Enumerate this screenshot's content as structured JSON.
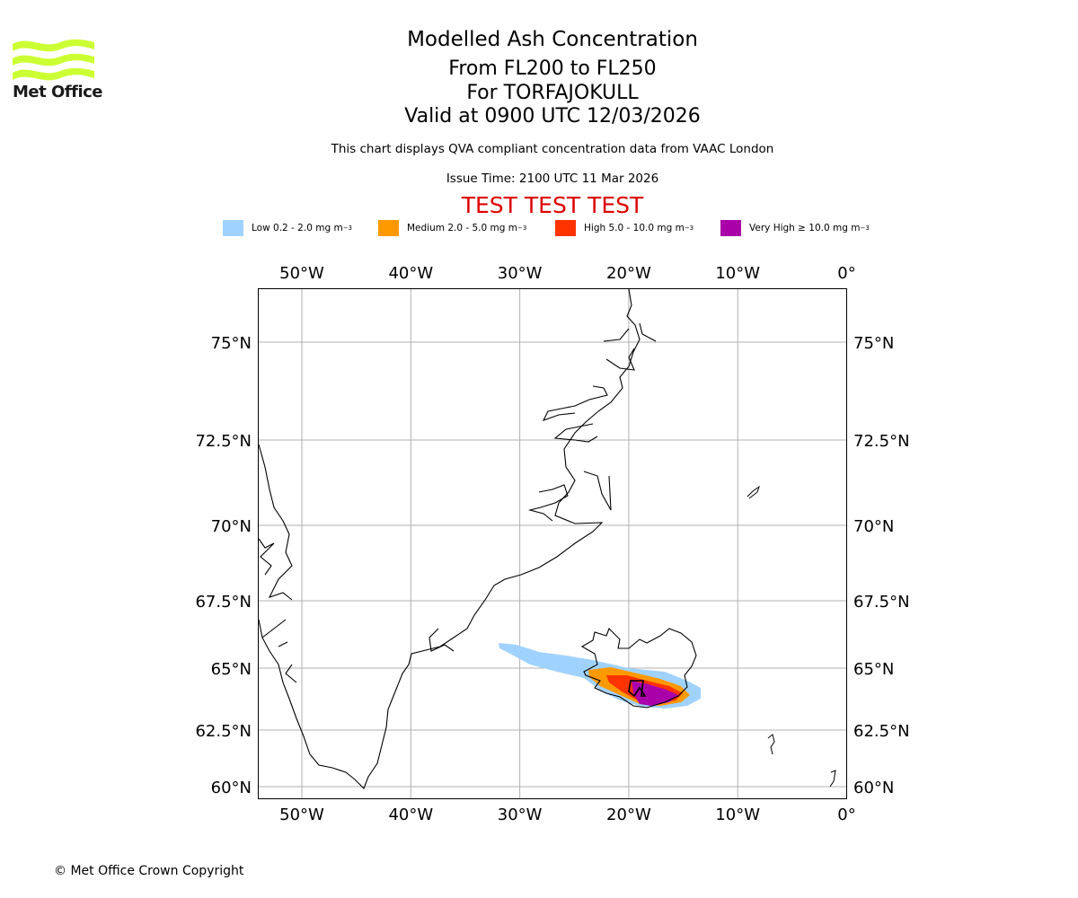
{
  "logo": {
    "text": "Met Office",
    "color": "#ccff33"
  },
  "header": {
    "title": "Modelled Ash Concentration",
    "levels": "From FL200 to FL250",
    "volcano": "For TORFAJOKULL",
    "valid": "Valid at 0900 UTC 12/03/2026",
    "description": "This chart displays QVA compliant concentration data from VAAC London",
    "issue_time": "Issue Time: 2100 UTC 11 Mar 2026",
    "test_banner": "TEST TEST TEST"
  },
  "legend": [
    {
      "label": "Low 0.2 - 2.0 mg m",
      "sup": "−3",
      "color": "#a0d2ff"
    },
    {
      "label": "Medium 2.0 - 5.0 mg m",
      "sup": "−3",
      "color": "#ff9900"
    },
    {
      "label": "High 5.0 - 10.0 mg m",
      "sup": "−3",
      "color": "#ff3300"
    },
    {
      "label": "Very High ≥ 10.0 mg m",
      "sup": "−3",
      "color": "#aa00aa"
    }
  ],
  "map": {
    "lon_range": [
      -54,
      0
    ],
    "lat_range": [
      59.5,
      77
    ],
    "lon_ticks": [
      {
        "value": -50,
        "label": "50°W"
      },
      {
        "value": -40,
        "label": "40°W"
      },
      {
        "value": -30,
        "label": "30°W"
      },
      {
        "value": -20,
        "label": "20°W"
      },
      {
        "value": -10,
        "label": "10°W"
      },
      {
        "value": 0,
        "label": "0°"
      }
    ],
    "lat_ticks": [
      {
        "value": 75,
        "label": "75°N"
      },
      {
        "value": 72.5,
        "label": "72.5°N"
      },
      {
        "value": 70,
        "label": "70°N"
      },
      {
        "value": 67.5,
        "label": "67.5°N"
      },
      {
        "value": 65,
        "label": "65°N"
      },
      {
        "value": 62.5,
        "label": "62.5°N"
      },
      {
        "value": 60,
        "label": "60°N"
      }
    ],
    "grid": true
  },
  "copyright": "© Met Office Crown Copyright"
}
